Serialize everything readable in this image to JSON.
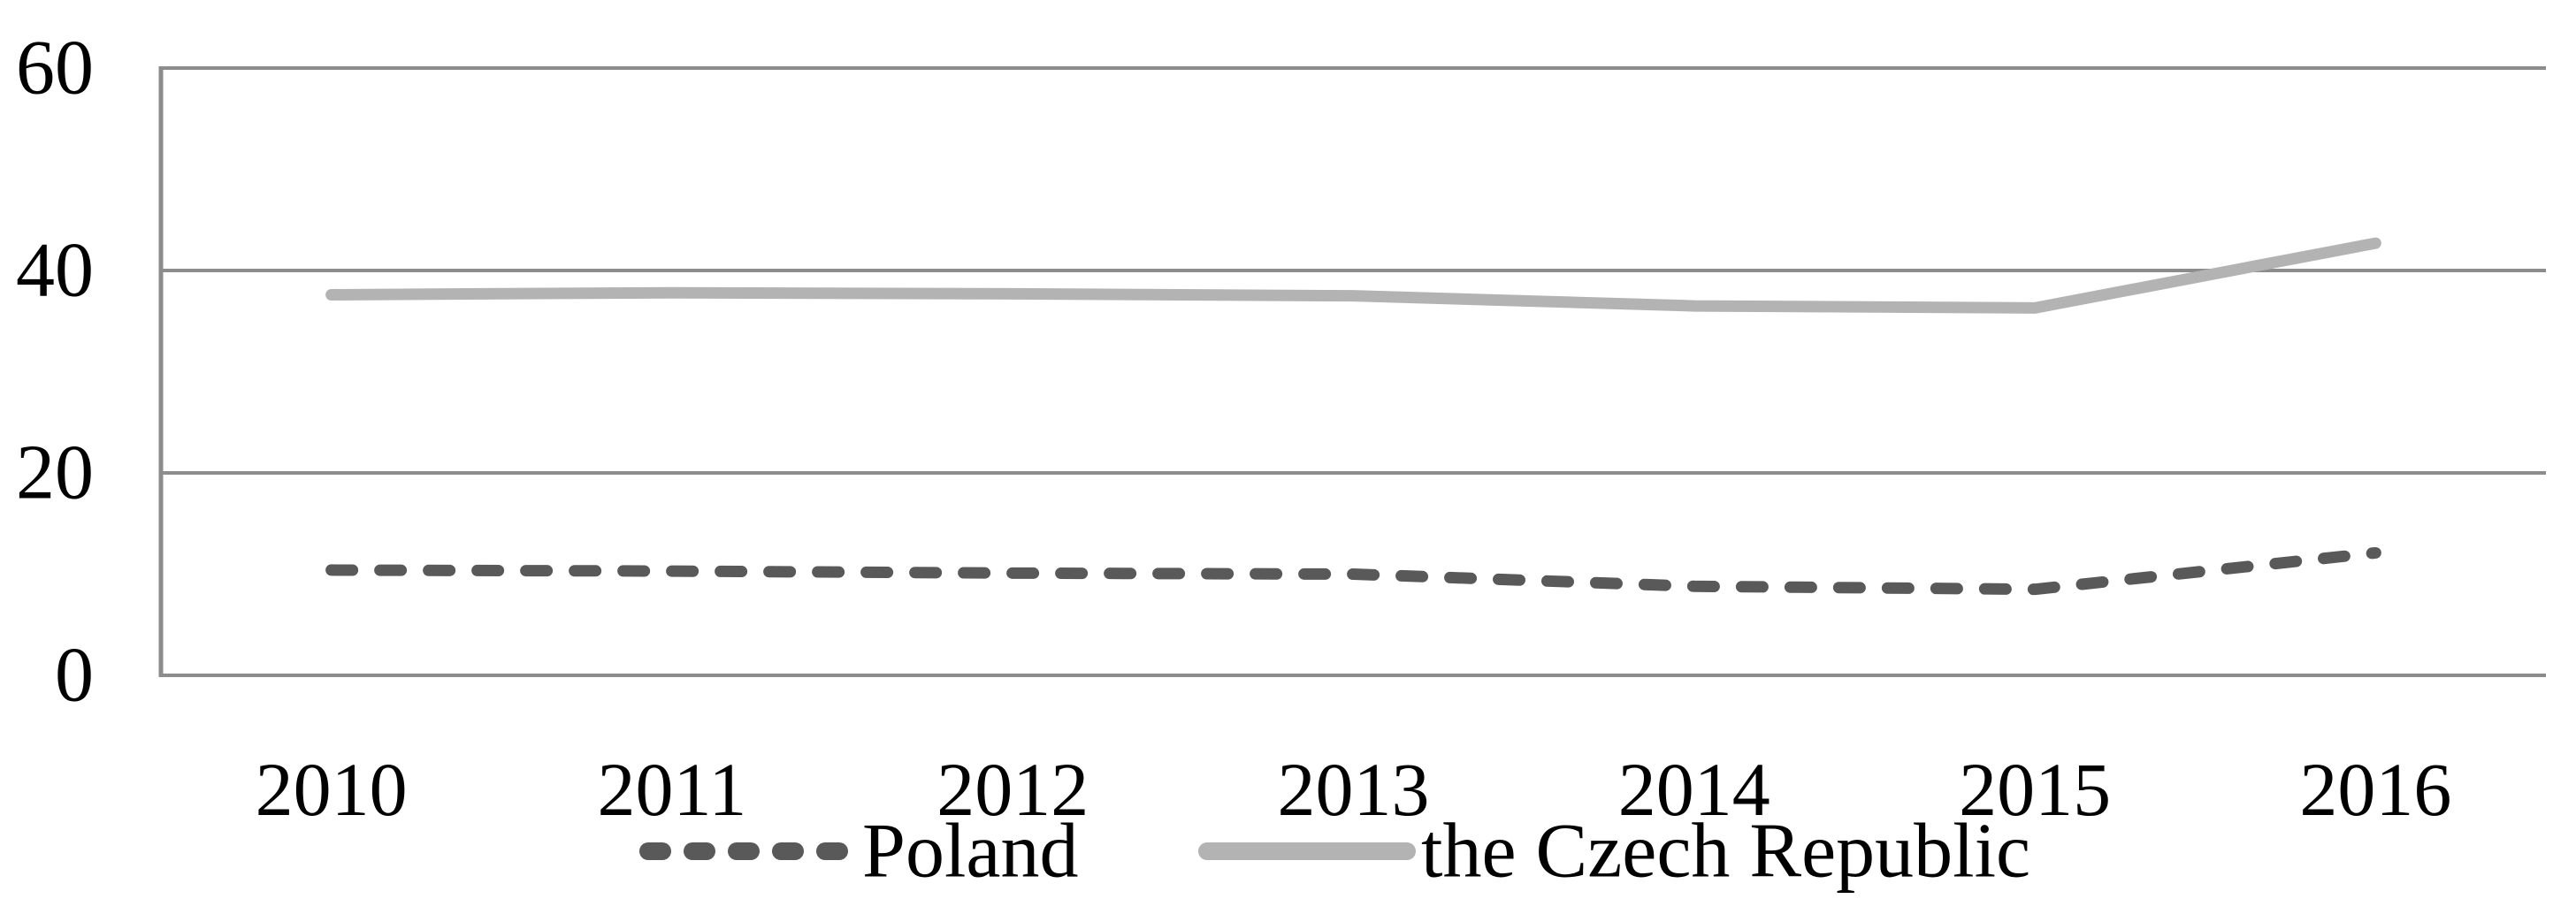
{
  "chart_data": {
    "type": "line",
    "title": "",
    "xlabel": "",
    "ylabel": "",
    "categories": [
      "2010",
      "2011",
      "2012",
      "2013",
      "2014",
      "2015",
      "2016"
    ],
    "series": [
      {
        "name": "Poland",
        "values": [
          10.4,
          10.3,
          10.1,
          10.0,
          8.8,
          8.5,
          12.1
        ],
        "color": "#595959",
        "style": "dashed"
      },
      {
        "name": "the Czech Republic",
        "values": [
          37.6,
          37.8,
          37.7,
          37.5,
          36.5,
          36.3,
          42.7
        ],
        "color": "#b3b3b3",
        "style": "solid"
      }
    ],
    "ylim": [
      0,
      60
    ],
    "yticks": [
      0,
      20,
      40,
      60
    ],
    "grid": "horizontal",
    "legend_position": "bottom",
    "colors": {
      "gridline": "#8c8c8c",
      "axis": "#8c8c8c",
      "text": "#000000",
      "background": "#ffffff"
    }
  }
}
